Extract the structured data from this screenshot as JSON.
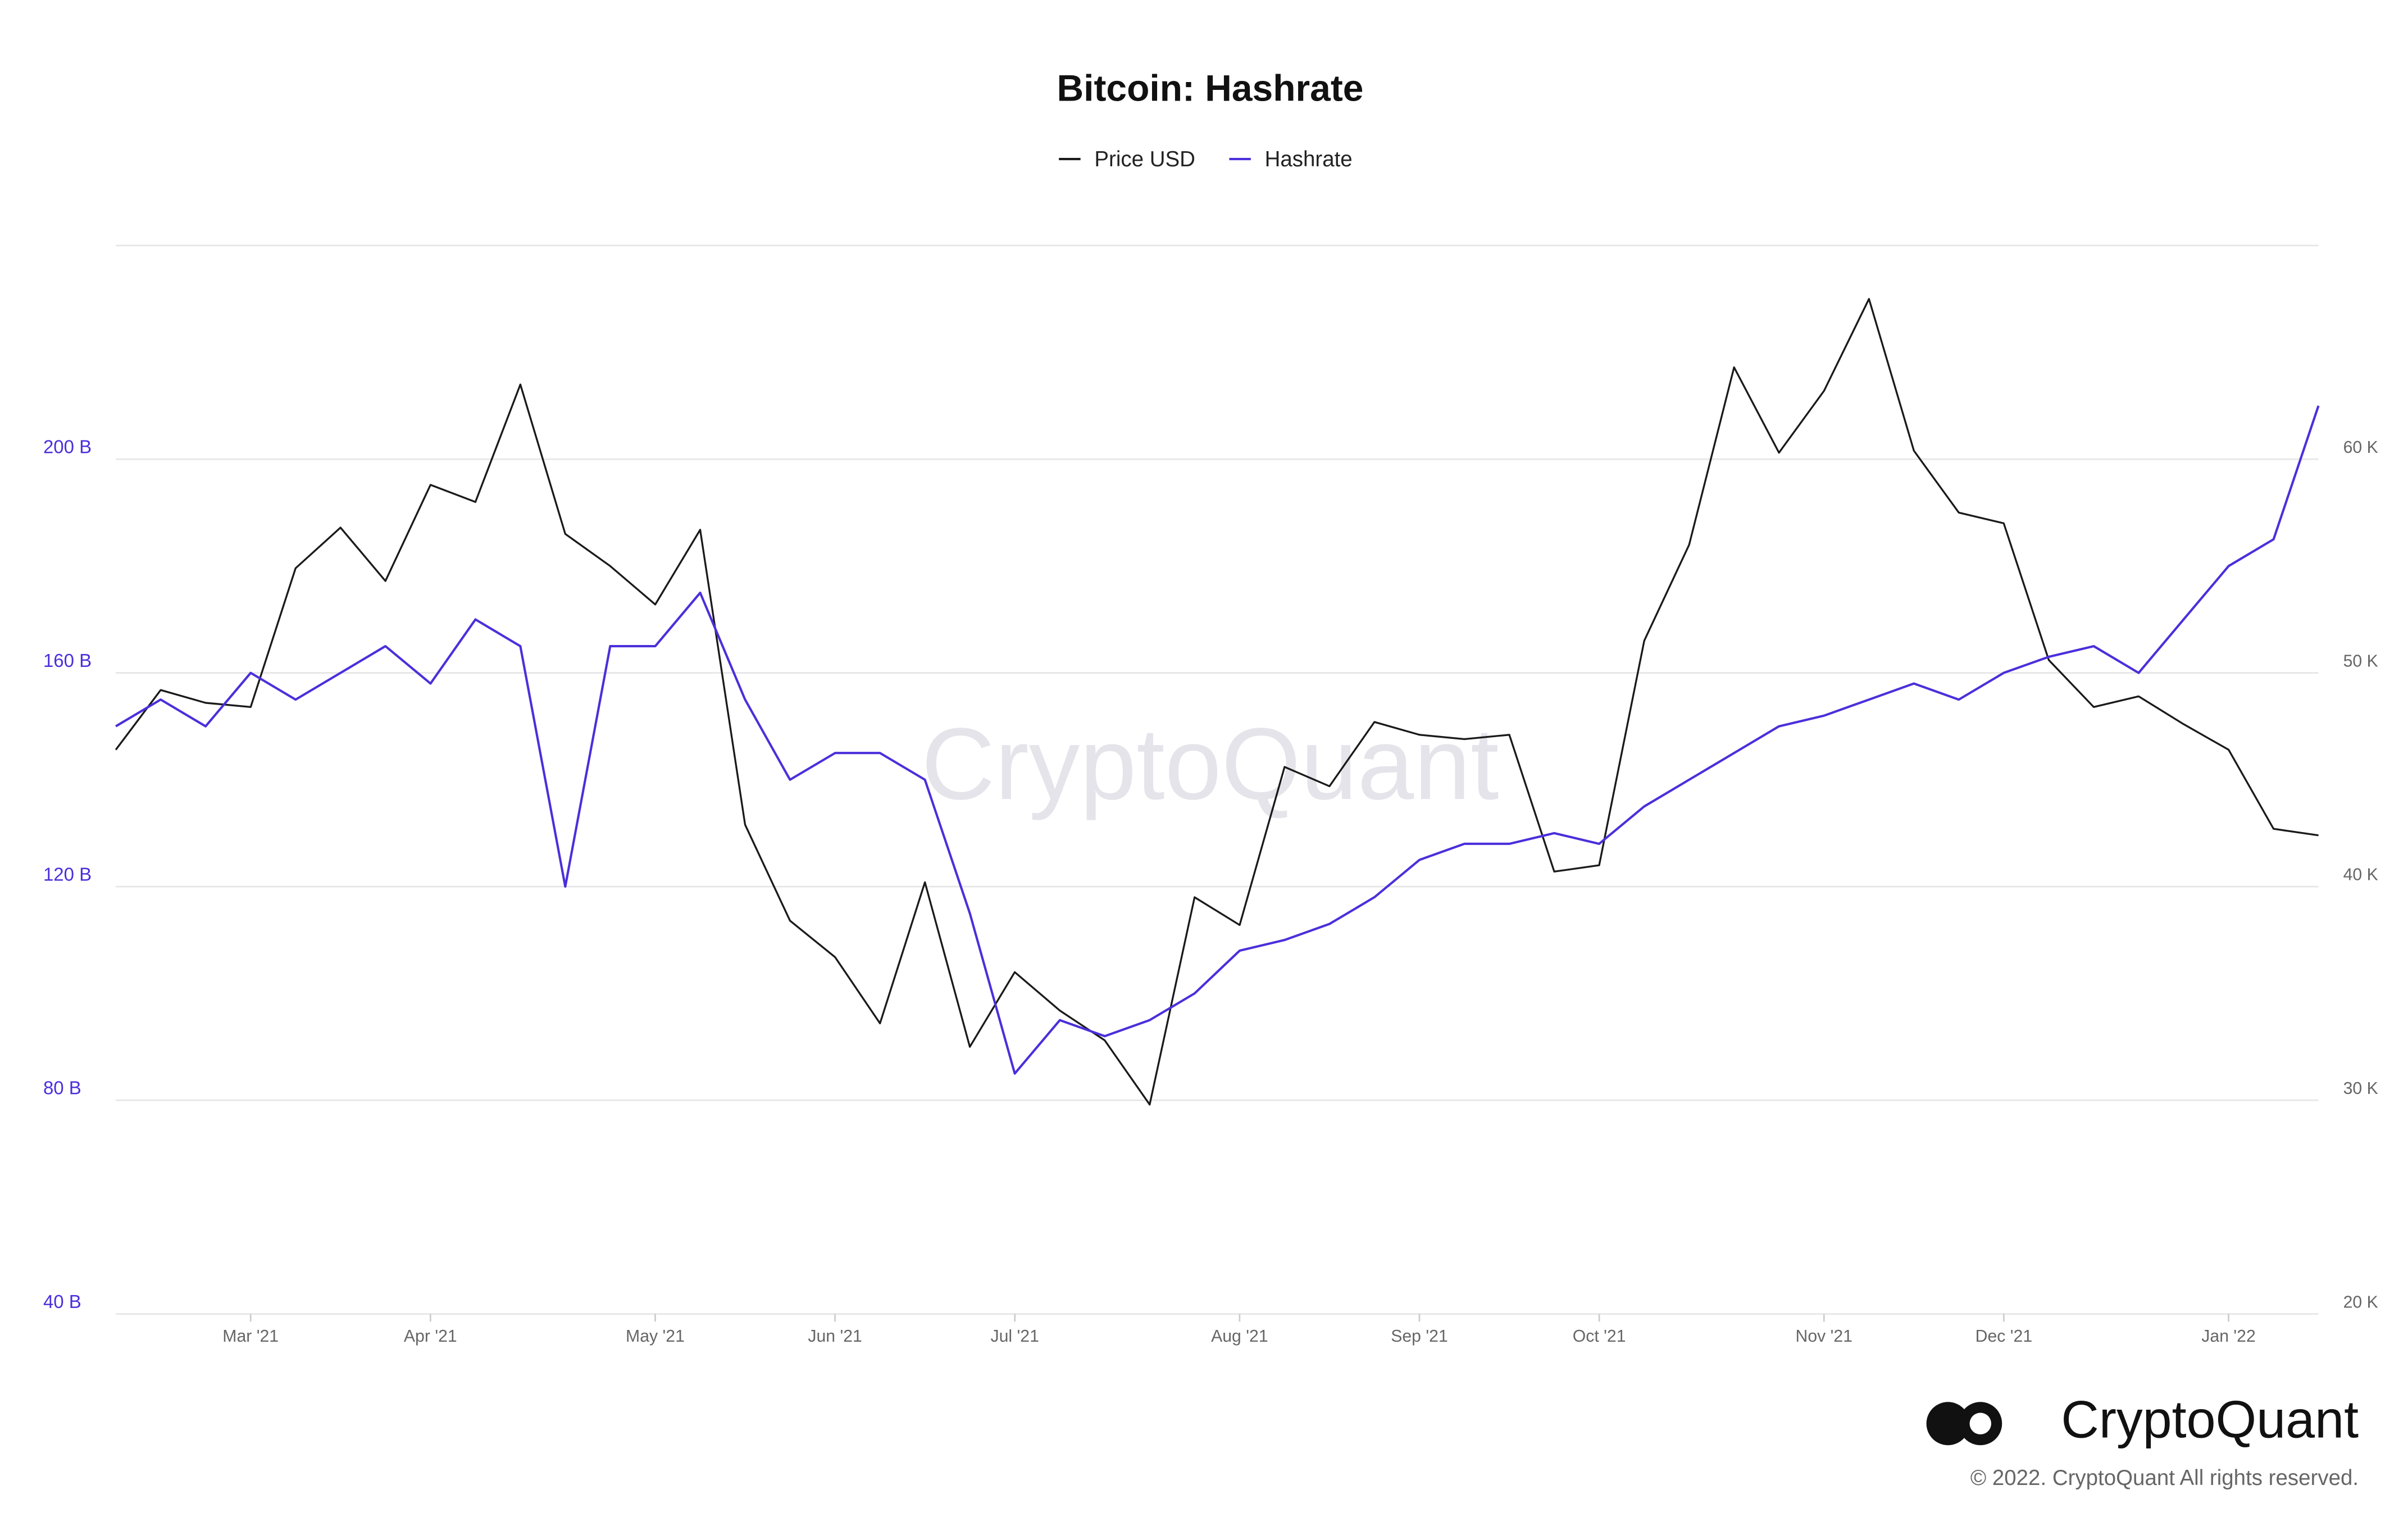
{
  "chart_data": {
    "type": "line",
    "title": "Bitcoin: Hashrate",
    "watermark": "CryptoQuant",
    "brand": "CryptoQuant",
    "copyright": "© 2022. CryptoQuant All rights reserved.",
    "categories": [
      null,
      null,
      null,
      "Mar '21",
      null,
      null,
      null,
      "Apr '21",
      null,
      null,
      null,
      null,
      "May '21",
      null,
      null,
      null,
      "Jun '21",
      null,
      null,
      null,
      "Jul '21",
      null,
      null,
      null,
      null,
      "Aug '21",
      null,
      null,
      null,
      "Sep '21",
      null,
      null,
      null,
      "Oct '21",
      null,
      null,
      null,
      null,
      "Nov '21",
      null,
      null,
      null,
      "Dec '21",
      null,
      null,
      null,
      null,
      "Jan '22",
      null,
      null
    ],
    "series": [
      {
        "name": "Price USD",
        "color": "#1a1a1a",
        "axis": "y2",
        "values": [
          46400,
          49200,
          48600,
          48400,
          54900,
          56800,
          54300,
          58800,
          58000,
          63500,
          56500,
          55000,
          53200,
          56700,
          42900,
          38400,
          36700,
          33600,
          40200,
          32500,
          36000,
          34200,
          32800,
          29800,
          39500,
          38200,
          45600,
          44700,
          47700,
          47100,
          46900,
          47100,
          40700,
          41000,
          51500,
          56000,
          64300,
          60300,
          63200,
          67500,
          60400,
          57500,
          57000,
          50600,
          48400,
          48900,
          47600,
          46400,
          42700,
          42400
        ]
      },
      {
        "name": "Hashrate",
        "color": "#4b2fdb",
        "values": [
          150,
          155,
          150,
          160,
          155,
          160,
          165,
          158,
          170,
          165,
          120,
          165,
          165,
          175,
          155,
          140,
          145,
          145,
          140,
          115,
          85,
          95,
          92,
          95,
          100,
          108,
          110,
          113,
          118,
          125,
          128,
          128,
          130,
          128,
          135,
          140,
          145,
          150,
          152,
          155,
          158,
          155,
          160,
          163,
          165,
          160,
          170,
          180,
          185,
          210
        ]
      }
    ],
    "ylim": [
      40,
      240
    ],
    "yticks": [
      {
        "value": 40,
        "label": "40 B"
      },
      {
        "value": 80,
        "label": "80 B"
      },
      {
        "value": 120,
        "label": "120 B"
      },
      {
        "value": 160,
        "label": "160 B"
      },
      {
        "value": 200,
        "label": "200 B"
      }
    ],
    "y2lim": [
      20000,
      70000
    ],
    "y2ticks": [
      {
        "value": 20000,
        "label": "20 K"
      },
      {
        "value": 30000,
        "label": "30 K"
      },
      {
        "value": 40000,
        "label": "40 K"
      },
      {
        "value": 50000,
        "label": "50 K"
      },
      {
        "value": 60000,
        "label": "60 K"
      }
    ],
    "grid": true,
    "legend": "top"
  }
}
